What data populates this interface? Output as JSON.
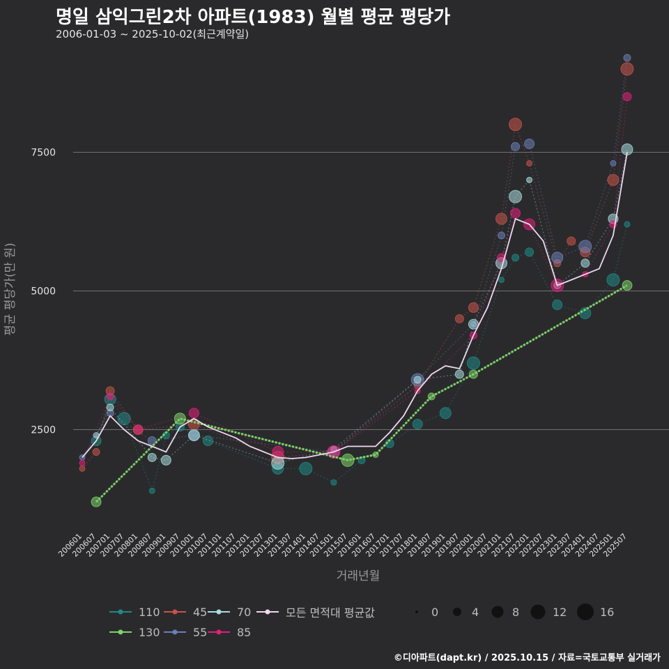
{
  "title": "명일 삼익그린2차 아파트(1983) 월별 평균 평당가",
  "subtitle": "2006-01-03 ~ 2025-10-02(최근계약일)",
  "caption": "©디아파트(dapt.kr) / 2025.10.15 / 자료=국토교통부 실거래가",
  "colors": {
    "background": "#2a2a2c",
    "grid": "#8a8a8a",
    "110": "#1f8a86",
    "130": "#7fd36b",
    "45": "#c9534a",
    "55": "#6b7fb8",
    "70": "#a8dde0",
    "85": "#e0207a",
    "avg": "#efd8f0"
  },
  "chart_data": {
    "type": "scatter",
    "title": "명일 삼익그린2차 아파트(1983) 월별 평균 평당가",
    "xlabel": "거래년월",
    "ylabel": "평균 평당가(만 원)",
    "ylim": [
      700,
      9300
    ],
    "yticks": [
      2500,
      5000,
      7500
    ],
    "xticks": [
      "200601",
      "200607",
      "200701",
      "200707",
      "200801",
      "200807",
      "200901",
      "200907",
      "201001",
      "201007",
      "201101",
      "201107",
      "201201",
      "201207",
      "201301",
      "201307",
      "201401",
      "201407",
      "201501",
      "201507",
      "201601",
      "201607",
      "201701",
      "201707",
      "201801",
      "201807",
      "201901",
      "201907",
      "202001",
      "202007",
      "202101",
      "202107",
      "202201",
      "202207",
      "202301",
      "202307",
      "202401",
      "202407",
      "202501",
      "202507"
    ],
    "size_legend": {
      "title": "",
      "values": [
        0,
        4,
        8,
        12,
        16
      ]
    },
    "series": [
      {
        "name": "110",
        "points": [
          [
            "200607",
            2300
          ],
          [
            "200701",
            3050
          ],
          [
            "200707",
            2700
          ],
          [
            "200807",
            1400
          ],
          [
            "200901",
            2400
          ],
          [
            "200907",
            2550
          ],
          [
            "201007",
            2300
          ],
          [
            "201301",
            1800
          ],
          [
            "201401",
            1800
          ],
          [
            "201501",
            1550
          ],
          [
            "201601",
            1950
          ],
          [
            "201701",
            2250
          ],
          [
            "201801",
            2600
          ],
          [
            "201901",
            2800
          ],
          [
            "202001",
            3700
          ],
          [
            "202101",
            5200
          ],
          [
            "202107",
            5600
          ],
          [
            "202201",
            5700
          ],
          [
            "202301",
            4750
          ],
          [
            "202401",
            4600
          ],
          [
            "202501",
            5200
          ],
          [
            "202507",
            6200
          ]
        ]
      },
      {
        "name": "130",
        "points": [
          [
            "200607",
            1200
          ],
          [
            "200907",
            2700
          ],
          [
            "201507",
            1950
          ],
          [
            "201607",
            2050
          ],
          [
            "201807",
            3100
          ],
          [
            "202001",
            3500
          ],
          [
            "202507",
            5100
          ]
        ]
      },
      {
        "name": "45",
        "points": [
          [
            "200601",
            1800
          ],
          [
            "200607",
            2100
          ],
          [
            "200701",
            3200
          ],
          [
            "200801",
            2500
          ],
          [
            "201001",
            2600
          ],
          [
            "201301",
            2000
          ],
          [
            "201501",
            2100
          ],
          [
            "201801",
            3300
          ],
          [
            "201907",
            4500
          ],
          [
            "202001",
            4700
          ],
          [
            "202101",
            6300
          ],
          [
            "202107",
            8000
          ],
          [
            "202201",
            7300
          ],
          [
            "202301",
            5500
          ],
          [
            "202307",
            5900
          ],
          [
            "202401",
            5700
          ],
          [
            "202501",
            7000
          ],
          [
            "202507",
            9000
          ]
        ]
      },
      {
        "name": "55",
        "points": [
          [
            "200601",
            2000
          ],
          [
            "200701",
            2800
          ],
          [
            "200807",
            2300
          ],
          [
            "201001",
            2400
          ],
          [
            "201501",
            2100
          ],
          [
            "201801",
            3400
          ],
          [
            "202001",
            4400
          ],
          [
            "202101",
            6000
          ],
          [
            "202107",
            7600
          ],
          [
            "202201",
            7650
          ],
          [
            "202301",
            5600
          ],
          [
            "202401",
            5800
          ],
          [
            "202501",
            7300
          ],
          [
            "202507",
            9200
          ]
        ]
      },
      {
        "name": "70",
        "points": [
          [
            "200607",
            2400
          ],
          [
            "200701",
            2900
          ],
          [
            "200807",
            2000
          ],
          [
            "200901",
            1950
          ],
          [
            "201001",
            2400
          ],
          [
            "201301",
            1900
          ],
          [
            "201501",
            2150
          ],
          [
            "201801",
            3400
          ],
          [
            "201907",
            3500
          ],
          [
            "202001",
            4400
          ],
          [
            "202101",
            5500
          ],
          [
            "202107",
            6700
          ],
          [
            "202201",
            7000
          ],
          [
            "202301",
            5100
          ],
          [
            "202401",
            5500
          ],
          [
            "202501",
            6300
          ],
          [
            "202507",
            7550
          ]
        ]
      },
      {
        "name": "85",
        "points": [
          [
            "200601",
            1900
          ],
          [
            "200701",
            3100
          ],
          [
            "200801",
            2500
          ],
          [
            "201001",
            2800
          ],
          [
            "201301",
            2100
          ],
          [
            "201501",
            2100
          ],
          [
            "201801",
            3200
          ],
          [
            "202001",
            4200
          ],
          [
            "202101",
            5600
          ],
          [
            "202107",
            6400
          ],
          [
            "202201",
            6200
          ],
          [
            "202301",
            5100
          ],
          [
            "202401",
            5300
          ],
          [
            "202501",
            6200
          ],
          [
            "202507",
            8500
          ]
        ]
      },
      {
        "name": "모든 면적대 평균값",
        "points": [
          [
            "200601",
            2000
          ],
          [
            "200607",
            2300
          ],
          [
            "200701",
            2750
          ],
          [
            "200707",
            2500
          ],
          [
            "200801",
            2300
          ],
          [
            "200807",
            2200
          ],
          [
            "200901",
            2100
          ],
          [
            "200907",
            2550
          ],
          [
            "201001",
            2700
          ],
          [
            "201007",
            2550
          ],
          [
            "201101",
            2450
          ],
          [
            "201107",
            2350
          ],
          [
            "201201",
            2200
          ],
          [
            "201207",
            2100
          ],
          [
            "201301",
            2000
          ],
          [
            "201307",
            1980
          ],
          [
            "201401",
            2000
          ],
          [
            "201407",
            2050
          ],
          [
            "201501",
            2100
          ],
          [
            "201507",
            2200
          ],
          [
            "201601",
            2200
          ],
          [
            "201607",
            2200
          ],
          [
            "201701",
            2450
          ],
          [
            "201707",
            2750
          ],
          [
            "201801",
            3200
          ],
          [
            "201807",
            3500
          ],
          [
            "201901",
            3650
          ],
          [
            "201907",
            3600
          ],
          [
            "202001",
            4200
          ],
          [
            "202007",
            4700
          ],
          [
            "202101",
            5400
          ],
          [
            "202107",
            6300
          ],
          [
            "202201",
            6200
          ],
          [
            "202207",
            5900
          ],
          [
            "202301",
            5100
          ],
          [
            "202307",
            5200
          ],
          [
            "202401",
            5300
          ],
          [
            "202407",
            5400
          ],
          [
            "202501",
            6000
          ],
          [
            "202507",
            7500
          ]
        ]
      }
    ]
  },
  "legend": {
    "series": [
      {
        "key": "110",
        "label": "110"
      },
      {
        "key": "45",
        "label": "45"
      },
      {
        "key": "70",
        "label": "70"
      },
      {
        "key": "avg",
        "label": "모든 면적대 평균값"
      },
      {
        "key": "130",
        "label": "130"
      },
      {
        "key": "55",
        "label": "55"
      },
      {
        "key": "85",
        "label": "85"
      }
    ],
    "sizes": [
      "0",
      "4",
      "8",
      "12",
      "16"
    ]
  }
}
